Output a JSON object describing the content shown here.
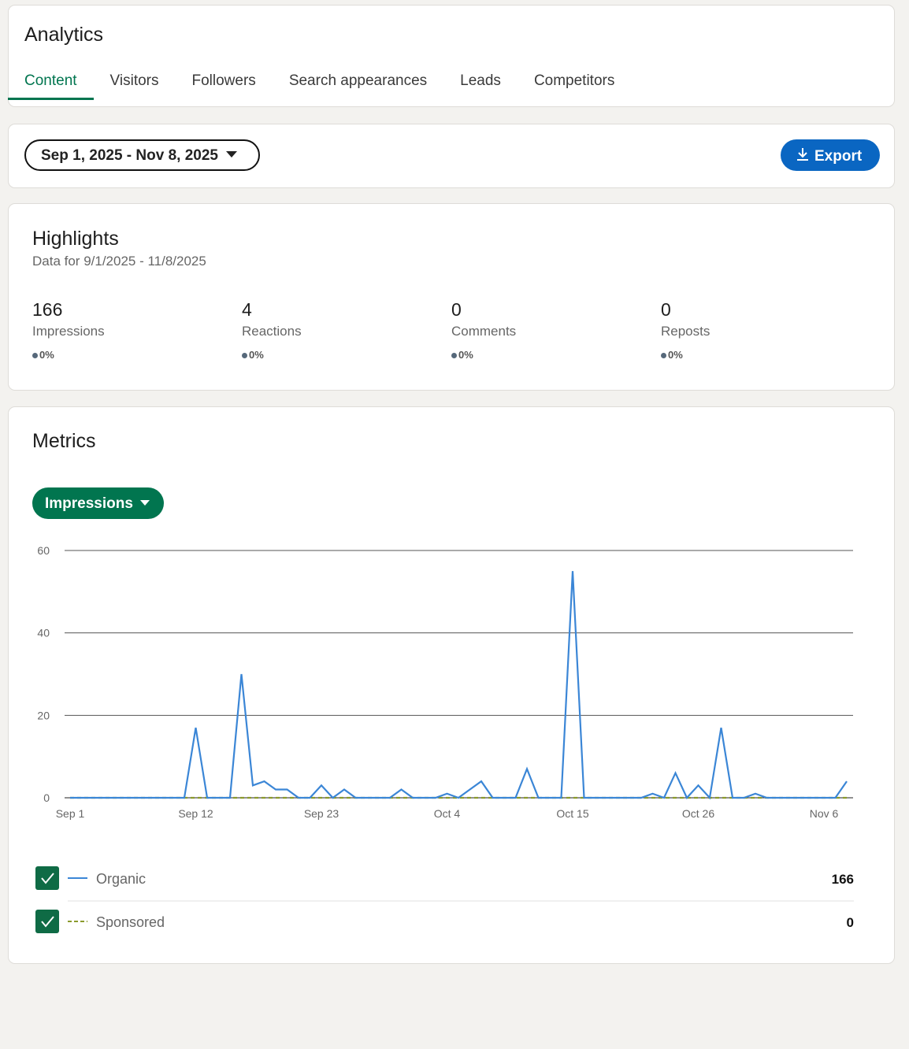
{
  "header": {
    "title": "Analytics",
    "tabs": [
      "Content",
      "Visitors",
      "Followers",
      "Search appearances",
      "Leads",
      "Competitors"
    ],
    "active_tab": 0
  },
  "toolbar": {
    "date_range": "Sep 1, 2025 - Nov 8, 2025",
    "export": "Export"
  },
  "highlights": {
    "title": "Highlights",
    "subtitle": "Data for 9/1/2025 - 11/8/2025",
    "stats": [
      {
        "value": 166,
        "label": "Impressions",
        "change": "0%"
      },
      {
        "value": 4,
        "label": "Reactions",
        "change": "0%"
      },
      {
        "value": 0,
        "label": "Comments",
        "change": "0%"
      },
      {
        "value": 0,
        "label": "Reposts",
        "change": "0%"
      }
    ]
  },
  "metrics": {
    "title": "Metrics",
    "metric": "Impressions",
    "chart": {
      "type": "line",
      "categories": [
        "Sep 1",
        null,
        null,
        null,
        null,
        null,
        null,
        null,
        null,
        null,
        null,
        "Sep 12",
        null,
        null,
        null,
        null,
        null,
        null,
        null,
        null,
        null,
        null,
        "Sep 23",
        null,
        null,
        null,
        null,
        null,
        null,
        null,
        null,
        null,
        null,
        "Oct 4",
        null,
        null,
        null,
        null,
        null,
        null,
        null,
        null,
        null,
        null,
        "Oct 15",
        null,
        null,
        null,
        null,
        null,
        null,
        null,
        null,
        null,
        null,
        "Oct 26",
        null,
        null,
        null,
        null,
        null,
        null,
        null,
        null,
        null,
        null,
        "Nov 6",
        null,
        null
      ],
      "series": [
        {
          "name": "Organic",
          "color": "#3b86d6",
          "dash": false,
          "total": 166,
          "values": [
            0,
            0,
            0,
            0,
            0,
            0,
            0,
            0,
            0,
            0,
            0,
            17,
            0,
            0,
            0,
            30,
            3,
            4,
            2,
            2,
            0,
            0,
            3,
            0,
            2,
            0,
            0,
            0,
            0,
            2,
            0,
            0,
            0,
            1,
            0,
            2,
            4,
            0,
            0,
            0,
            7,
            0,
            0,
            0,
            55,
            0,
            0,
            0,
            0,
            0,
            0,
            1,
            0,
            6,
            0,
            3,
            0,
            17,
            0,
            0,
            1,
            0,
            0,
            0,
            0,
            0,
            0,
            0,
            4
          ]
        },
        {
          "name": "Sponsored",
          "color": "#8b9a2c",
          "dash": true,
          "total": 0,
          "values": [
            0,
            0,
            0,
            0,
            0,
            0,
            0,
            0,
            0,
            0,
            0,
            0,
            0,
            0,
            0,
            0,
            0,
            0,
            0,
            0,
            0,
            0,
            0,
            0,
            0,
            0,
            0,
            0,
            0,
            0,
            0,
            0,
            0,
            0,
            0,
            0,
            0,
            0,
            0,
            0,
            0,
            0,
            0,
            0,
            0,
            0,
            0,
            0,
            0,
            0,
            0,
            0,
            0,
            0,
            0,
            0,
            0,
            0,
            0,
            0,
            0,
            0,
            0,
            0,
            0,
            0,
            0,
            0,
            0
          ]
        }
      ],
      "ylim": [
        0,
        60
      ],
      "yticks": [
        0,
        20,
        40,
        60
      ],
      "grid": true
    }
  }
}
